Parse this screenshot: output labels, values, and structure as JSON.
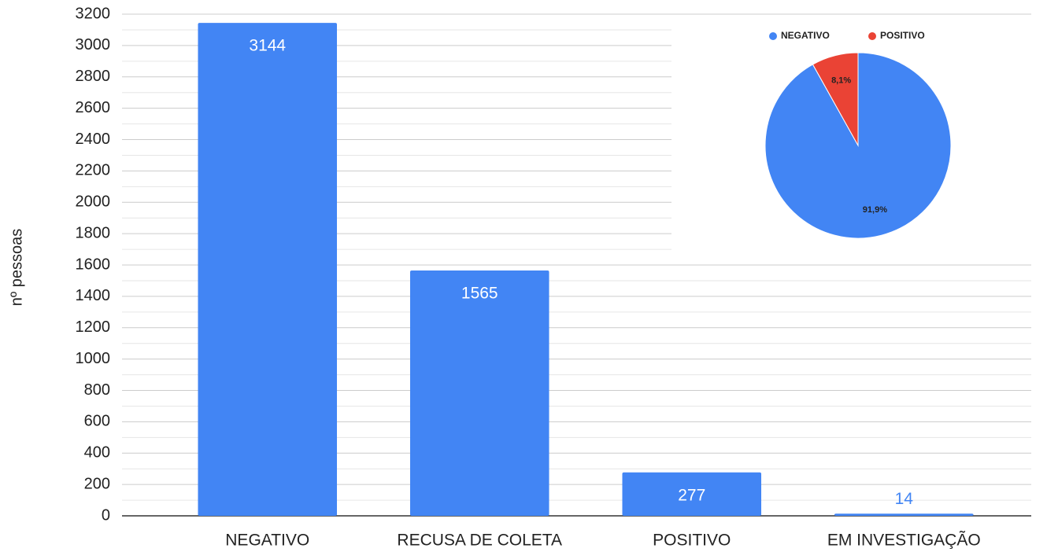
{
  "chart_data": [
    {
      "type": "bar",
      "y_label": "nº pessoas",
      "categories": [
        "NEGATIVO",
        "RECUSA DE COLETA",
        "POSITIVO",
        "EM INVESTIGAÇÃO"
      ],
      "values": [
        3144,
        1565,
        277,
        14
      ],
      "color": "#4285f4",
      "ylim": [
        0,
        3200
      ],
      "yticks": [
        0,
        200,
        400,
        600,
        800,
        1000,
        1200,
        1400,
        1600,
        1800,
        2000,
        2200,
        2400,
        2600,
        2800,
        3000,
        3200
      ],
      "grid": true
    },
    {
      "type": "pie",
      "categories": [
        "NEGATIVO",
        "POSITIVO"
      ],
      "values": [
        91.9,
        8.1
      ],
      "value_labels": [
        "91,9%",
        "8,1%"
      ],
      "colors": [
        "#4285f4",
        "#ea4335"
      ],
      "legend": "top"
    }
  ]
}
